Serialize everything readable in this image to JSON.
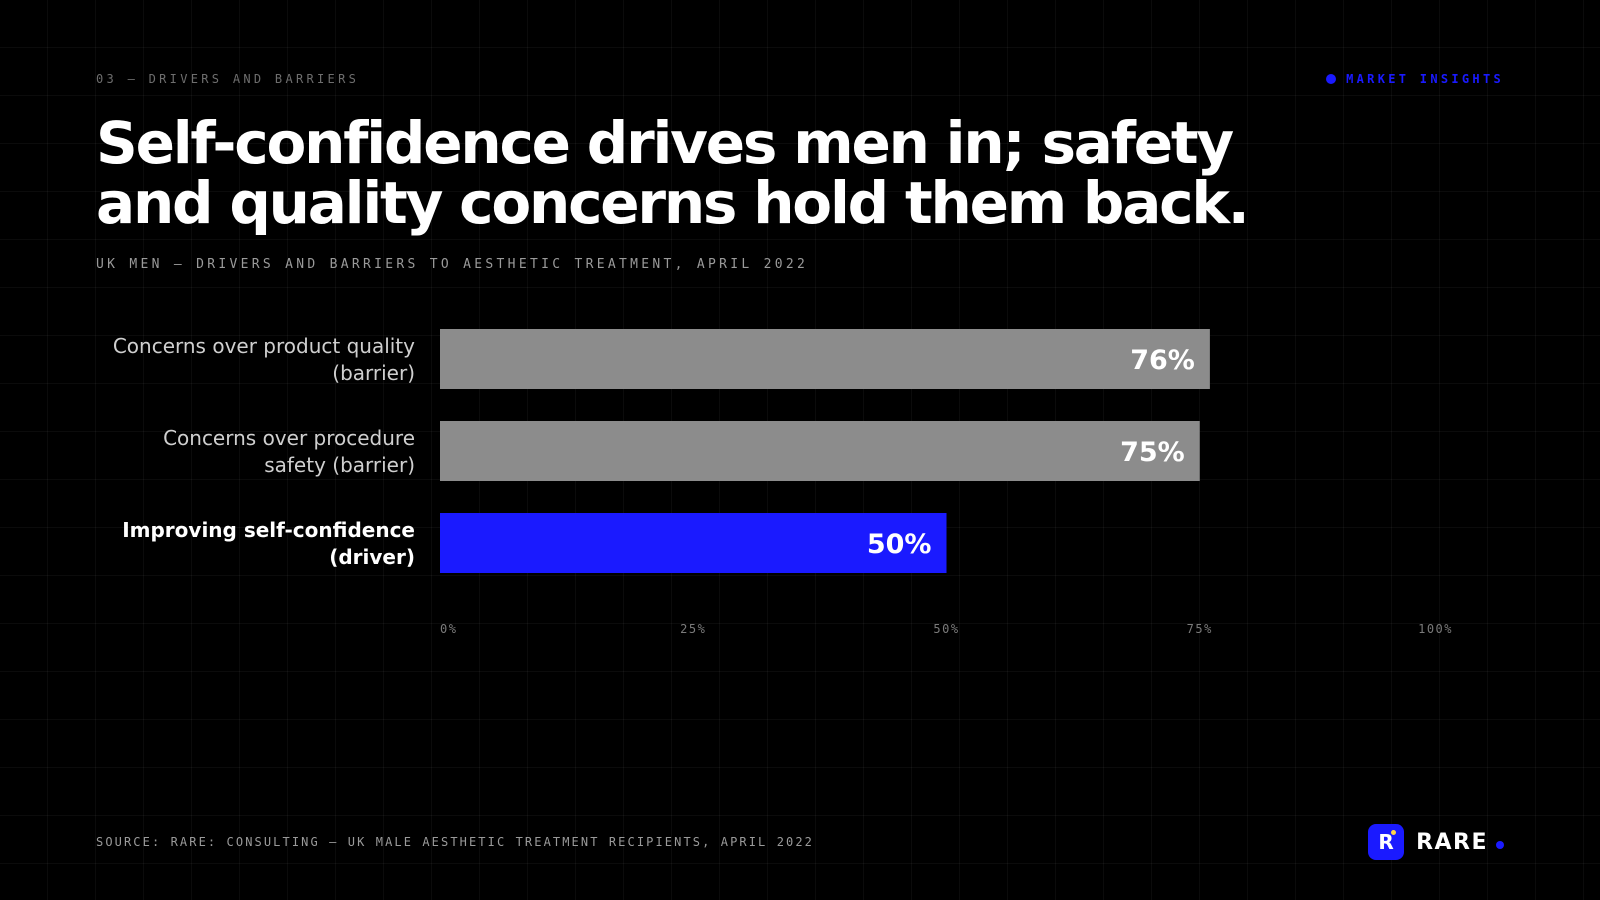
{
  "slide": {
    "eyebrow": "03 — DRIVERS AND BARRIERS",
    "tag": "MARKET INSIGHTS",
    "title": "Self-confidence drives men in; safety and quality concerns hold them back.",
    "subtitle": "UK MEN — DRIVERS AND BARRIERS TO AESTHETIC TREATMENT, APRIL 2022",
    "source": "SOURCE: RARE: CONSULTING — UK MALE AESTHETIC TREATMENT RECIPIENTS, APRIL 2022"
  },
  "brand": {
    "mark": "R",
    "name": "RARE"
  },
  "colors": {
    "accent": "#1a1aff",
    "neutral_bar": "#8c8c8c",
    "background": "#000000"
  },
  "chart_data": {
    "type": "bar",
    "orientation": "horizontal",
    "categories": [
      [
        "Concerns over product quality",
        "(barrier)"
      ],
      [
        "Concerns over procedure",
        "safety (barrier)"
      ],
      [
        "Improving self-confidence",
        "(driver)"
      ]
    ],
    "values": [
      76,
      75,
      50
    ],
    "value_labels": [
      "76%",
      "75%",
      "50%"
    ],
    "highlight": [
      false,
      false,
      true
    ],
    "xlim": [
      0,
      100
    ],
    "ticks": [
      0,
      25,
      50,
      75,
      100
    ],
    "tick_labels": [
      "0%",
      "25%",
      "50%",
      "75%",
      "100%"
    ],
    "grid": false
  }
}
